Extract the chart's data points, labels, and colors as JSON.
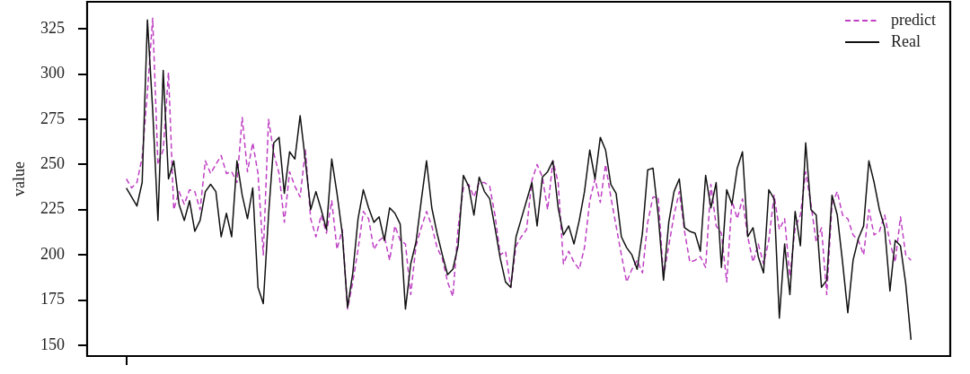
{
  "chart_data": {
    "type": "line",
    "ylabel": "value",
    "ylim": [
      144,
      340
    ],
    "yticks": [
      150,
      175,
      200,
      225,
      250,
      275,
      300,
      325
    ],
    "legend": "top right",
    "marker": "none",
    "categories": [
      null,
      null,
      null,
      null,
      null,
      null,
      null,
      null,
      null,
      null,
      null,
      null,
      null,
      null,
      null,
      null,
      null,
      null,
      null,
      null,
      null,
      null,
      null,
      null,
      null,
      null,
      null,
      null,
      null,
      null,
      null,
      null,
      null,
      null,
      null,
      null,
      null,
      null,
      null,
      null,
      null,
      null,
      null,
      null,
      null,
      null,
      null,
      null,
      null,
      null,
      null,
      null,
      null,
      null,
      null,
      null,
      null,
      null,
      null,
      null,
      null,
      null,
      null,
      null,
      null,
      null,
      null,
      null,
      null,
      null,
      null,
      null,
      null,
      null,
      null,
      null,
      null,
      null,
      null,
      null,
      null,
      null,
      null,
      null,
      null,
      null,
      null,
      null,
      null,
      null,
      null,
      null,
      null,
      null,
      null,
      null,
      null,
      null,
      null,
      null,
      null,
      null,
      null,
      null,
      null,
      null,
      null,
      null,
      null,
      null,
      null,
      null,
      null,
      null,
      null,
      null,
      null,
      null,
      null,
      null,
      null,
      null,
      null,
      null,
      null,
      null,
      null,
      null,
      null,
      null,
      null,
      null,
      null,
      null,
      null,
      null,
      null,
      null,
      null,
      null,
      null,
      null,
      null,
      null,
      null,
      null,
      null,
      null,
      null,
      null
    ],
    "series": [
      {
        "name": "predict",
        "color": "#bf40c4",
        "line_style": "dashed",
        "values": [
          242,
          237,
          240,
          254,
          290,
          331,
          250,
          258,
          301,
          225,
          235,
          228,
          236,
          235,
          225,
          252,
          245,
          250,
          255,
          245,
          246,
          240,
          276,
          246,
          262,
          245,
          200,
          275,
          256,
          245,
          218,
          246,
          238,
          232,
          258,
          220,
          210,
          222,
          212,
          230,
          203,
          214,
          170,
          185,
          203,
          224,
          220,
          203,
          208,
          210,
          197,
          216,
          208,
          206,
          178,
          205,
          215,
          224,
          216,
          204,
          198,
          185,
          177,
          215,
          237,
          239,
          232,
          240,
          240,
          238,
          222,
          200,
          202,
          182,
          205,
          210,
          214,
          241,
          250,
          243,
          225,
          252,
          240,
          195,
          202,
          196,
          192,
          204,
          230,
          242,
          229,
          250,
          232,
          216,
          200,
          185,
          192,
          197,
          190,
          218,
          232,
          232,
          188,
          205,
          222,
          235,
          213,
          196,
          197,
          199,
          193,
          239,
          216,
          212,
          185,
          230,
          220,
          231,
          210,
          196,
          206,
          195,
          208,
          233,
          214,
          220,
          188,
          215,
          222,
          246,
          228,
          207,
          215,
          178,
          228,
          235,
          222,
          220,
          211,
          208,
          200,
          225,
          211,
          213,
          222,
          207,
          196,
          221,
          200,
          197
        ]
      },
      {
        "name": "Real",
        "color": "#111111",
        "line_style": "solid",
        "values": [
          237,
          232,
          227,
          240,
          330,
          280,
          219,
          302,
          242,
          252,
          228,
          219,
          230,
          213,
          219,
          235,
          239,
          235,
          210,
          223,
          210,
          252,
          233,
          220,
          237,
          182,
          173,
          222,
          262,
          265,
          234,
          257,
          253,
          277,
          252,
          225,
          235,
          225,
          214,
          253,
          234,
          212,
          171,
          190,
          220,
          236,
          226,
          218,
          221,
          208,
          226,
          223,
          217,
          170,
          195,
          207,
          230,
          252,
          226,
          212,
          200,
          189,
          192,
          205,
          244,
          238,
          222,
          243,
          235,
          231,
          215,
          198,
          185,
          182,
          210,
          220,
          230,
          240,
          216,
          243,
          246,
          252,
          226,
          211,
          216,
          206,
          219,
          235,
          258,
          242,
          265,
          258,
          239,
          234,
          210,
          204,
          200,
          192,
          212,
          247,
          248,
          222,
          186,
          218,
          235,
          242,
          215,
          213,
          212,
          202,
          244,
          226,
          240,
          193,
          236,
          228,
          248,
          257,
          210,
          215,
          199,
          190,
          236,
          231,
          165,
          206,
          178,
          224,
          205,
          262,
          225,
          222,
          182,
          186,
          233,
          222,
          196,
          168,
          197,
          209,
          216,
          252,
          240,
          225,
          215,
          180,
          208,
          205,
          184,
          153
        ]
      }
    ]
  }
}
